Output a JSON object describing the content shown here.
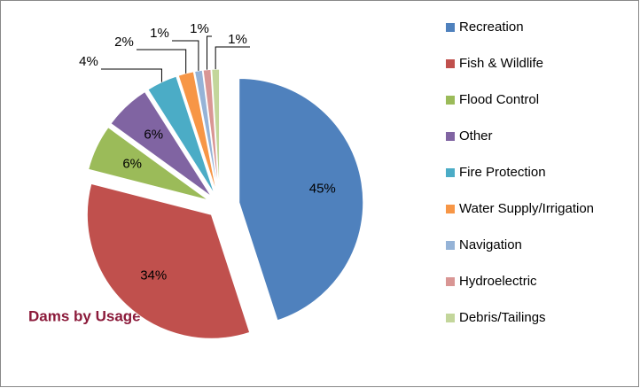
{
  "chart_data": {
    "type": "pie",
    "title": "Dams by Usage",
    "categories": [
      "Recreation",
      "Fish & Wildlife",
      "Flood Control",
      "Other",
      "Fire Protection",
      "Water Supply/Irrigation",
      "Navigation",
      "Hydroelectric",
      "Debris/Tailings"
    ],
    "values": [
      45,
      34,
      6,
      6,
      4,
      2,
      1,
      1,
      1
    ],
    "value_labels": [
      "45%",
      "34%",
      "6%",
      "6%",
      "4%",
      "2%",
      "1%",
      "1%",
      "1%"
    ],
    "colors": [
      "#4f81bd",
      "#c0504d",
      "#9bbb59",
      "#8064a2",
      "#4bacc6",
      "#f79646",
      "#95b3d7",
      "#d99694",
      "#c3d69b"
    ],
    "legend": "right"
  }
}
